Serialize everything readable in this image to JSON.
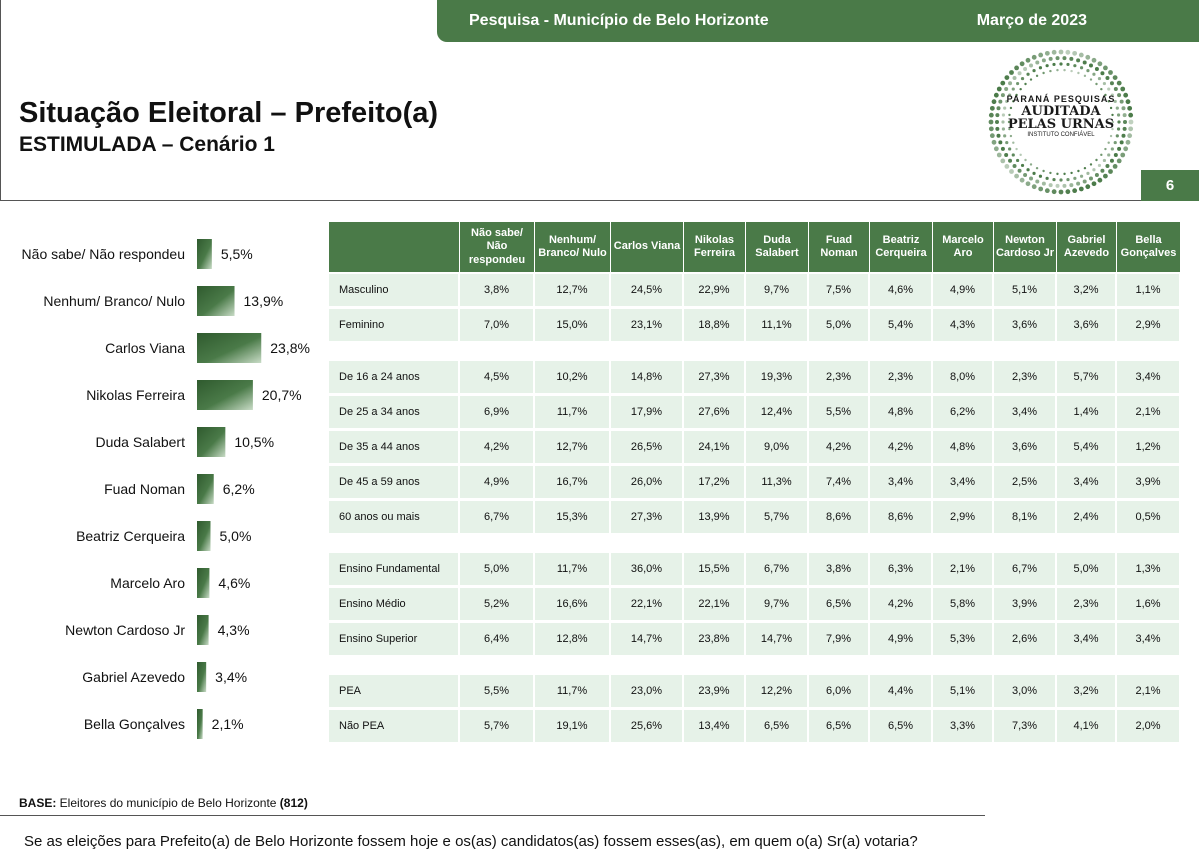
{
  "header": {
    "survey": "Pesquisa - Município de Belo Horizonte",
    "date": "Março de 2023"
  },
  "title": "Situação Eleitoral – Prefeito(a)",
  "subtitle": "ESTIMULADA – Cenário 1",
  "page_number": "6",
  "logo": {
    "line1": "PARANÁ PESQUISAS",
    "line2": "AUDITADA",
    "line3": "PELAS URNAS",
    "line4": "INSTITUTO CONFIÁVEL"
  },
  "colors": {
    "accent": "#4a7a48",
    "row_bg": "#e6f2e8"
  },
  "chart_data": [
    {
      "type": "bar",
      "orientation": "horizontal",
      "categories": [
        "Não sabe/ Não respondeu",
        "Nenhum/ Branco/ Nulo",
        "Carlos Viana",
        "Nikolas Ferreira",
        "Duda Salabert",
        "Fuad Noman",
        "Beatriz Cerqueira",
        "Marcelo Aro",
        "Newton Cardoso Jr",
        "Gabriel Azevedo",
        "Bella Gonçalves"
      ],
      "values": [
        5.5,
        13.9,
        23.8,
        20.7,
        10.5,
        6.2,
        5.0,
        4.6,
        4.3,
        3.4,
        2.1
      ],
      "value_labels": [
        "5,5%",
        "13,9%",
        "23,8%",
        "20,7%",
        "10,5%",
        "6,2%",
        "5,0%",
        "4,6%",
        "4,3%",
        "3,4%",
        "2,1%"
      ]
    },
    {
      "type": "table",
      "columns": [
        "",
        "Não sabe/ Não respondeu",
        "Nenhum/ Branco/ Nulo",
        "Carlos Viana",
        "Nikolas Ferreira",
        "Duda Salabert",
        "Fuad Noman",
        "Beatriz Cerqueira",
        "Marcelo Aro",
        "Newton Cardoso Jr",
        "Gabriel Azevedo",
        "Bella Gonçalves"
      ],
      "groups": [
        {
          "rows": [
            {
              "label": "Masculino",
              "values": [
                "3,8%",
                "12,7%",
                "24,5%",
                "22,9%",
                "9,7%",
                "7,5%",
                "4,6%",
                "4,9%",
                "5,1%",
                "3,2%",
                "1,1%"
              ]
            },
            {
              "label": "Feminino",
              "values": [
                "7,0%",
                "15,0%",
                "23,1%",
                "18,8%",
                "11,1%",
                "5,0%",
                "5,4%",
                "4,3%",
                "3,6%",
                "3,6%",
                "2,9%"
              ]
            }
          ]
        },
        {
          "rows": [
            {
              "label": "De 16 a 24 anos",
              "values": [
                "4,5%",
                "10,2%",
                "14,8%",
                "27,3%",
                "19,3%",
                "2,3%",
                "2,3%",
                "8,0%",
                "2,3%",
                "5,7%",
                "3,4%"
              ]
            },
            {
              "label": "De 25 a 34 anos",
              "values": [
                "6,9%",
                "11,7%",
                "17,9%",
                "27,6%",
                "12,4%",
                "5,5%",
                "4,8%",
                "6,2%",
                "3,4%",
                "1,4%",
                "2,1%"
              ]
            },
            {
              "label": "De 35 a 44 anos",
              "values": [
                "4,2%",
                "12,7%",
                "26,5%",
                "24,1%",
                "9,0%",
                "4,2%",
                "4,2%",
                "4,8%",
                "3,6%",
                "5,4%",
                "1,2%"
              ]
            },
            {
              "label": "De 45 a 59 anos",
              "values": [
                "4,9%",
                "16,7%",
                "26,0%",
                "17,2%",
                "11,3%",
                "7,4%",
                "3,4%",
                "3,4%",
                "2,5%",
                "3,4%",
                "3,9%"
              ]
            },
            {
              "label": "60 anos ou mais",
              "values": [
                "6,7%",
                "15,3%",
                "27,3%",
                "13,9%",
                "5,7%",
                "8,6%",
                "8,6%",
                "2,9%",
                "8,1%",
                "2,4%",
                "0,5%"
              ]
            }
          ]
        },
        {
          "rows": [
            {
              "label": "Ensino Fundamental",
              "values": [
                "5,0%",
                "11,7%",
                "36,0%",
                "15,5%",
                "6,7%",
                "3,8%",
                "6,3%",
                "2,1%",
                "6,7%",
                "5,0%",
                "1,3%"
              ]
            },
            {
              "label": "Ensino Médio",
              "values": [
                "5,2%",
                "16,6%",
                "22,1%",
                "22,1%",
                "9,7%",
                "6,5%",
                "4,2%",
                "5,8%",
                "3,9%",
                "2,3%",
                "1,6%"
              ]
            },
            {
              "label": "Ensino Superior",
              "values": [
                "6,4%",
                "12,8%",
                "14,7%",
                "23,8%",
                "14,7%",
                "7,9%",
                "4,9%",
                "5,3%",
                "2,6%",
                "3,4%",
                "3,4%"
              ]
            }
          ]
        },
        {
          "rows": [
            {
              "label": "PEA",
              "values": [
                "5,5%",
                "11,7%",
                "23,0%",
                "23,9%",
                "12,2%",
                "6,0%",
                "4,4%",
                "5,1%",
                "3,0%",
                "3,2%",
                "2,1%"
              ]
            },
            {
              "label": "Não PEA",
              "values": [
                "5,7%",
                "19,1%",
                "25,6%",
                "13,4%",
                "6,5%",
                "6,5%",
                "6,5%",
                "3,3%",
                "7,3%",
                "4,1%",
                "2,0%"
              ]
            }
          ]
        }
      ]
    }
  ],
  "footer": {
    "base_label": "BASE:",
    "base_text": " Eleitores do município de Belo Horizonte ",
    "base_count": "(812)",
    "question": "Se as eleições para Prefeito(a) de Belo Horizonte fossem hoje e os(as) candidatos(as) fossem esses(as), em quem o(a) Sr(a) votaria?"
  }
}
